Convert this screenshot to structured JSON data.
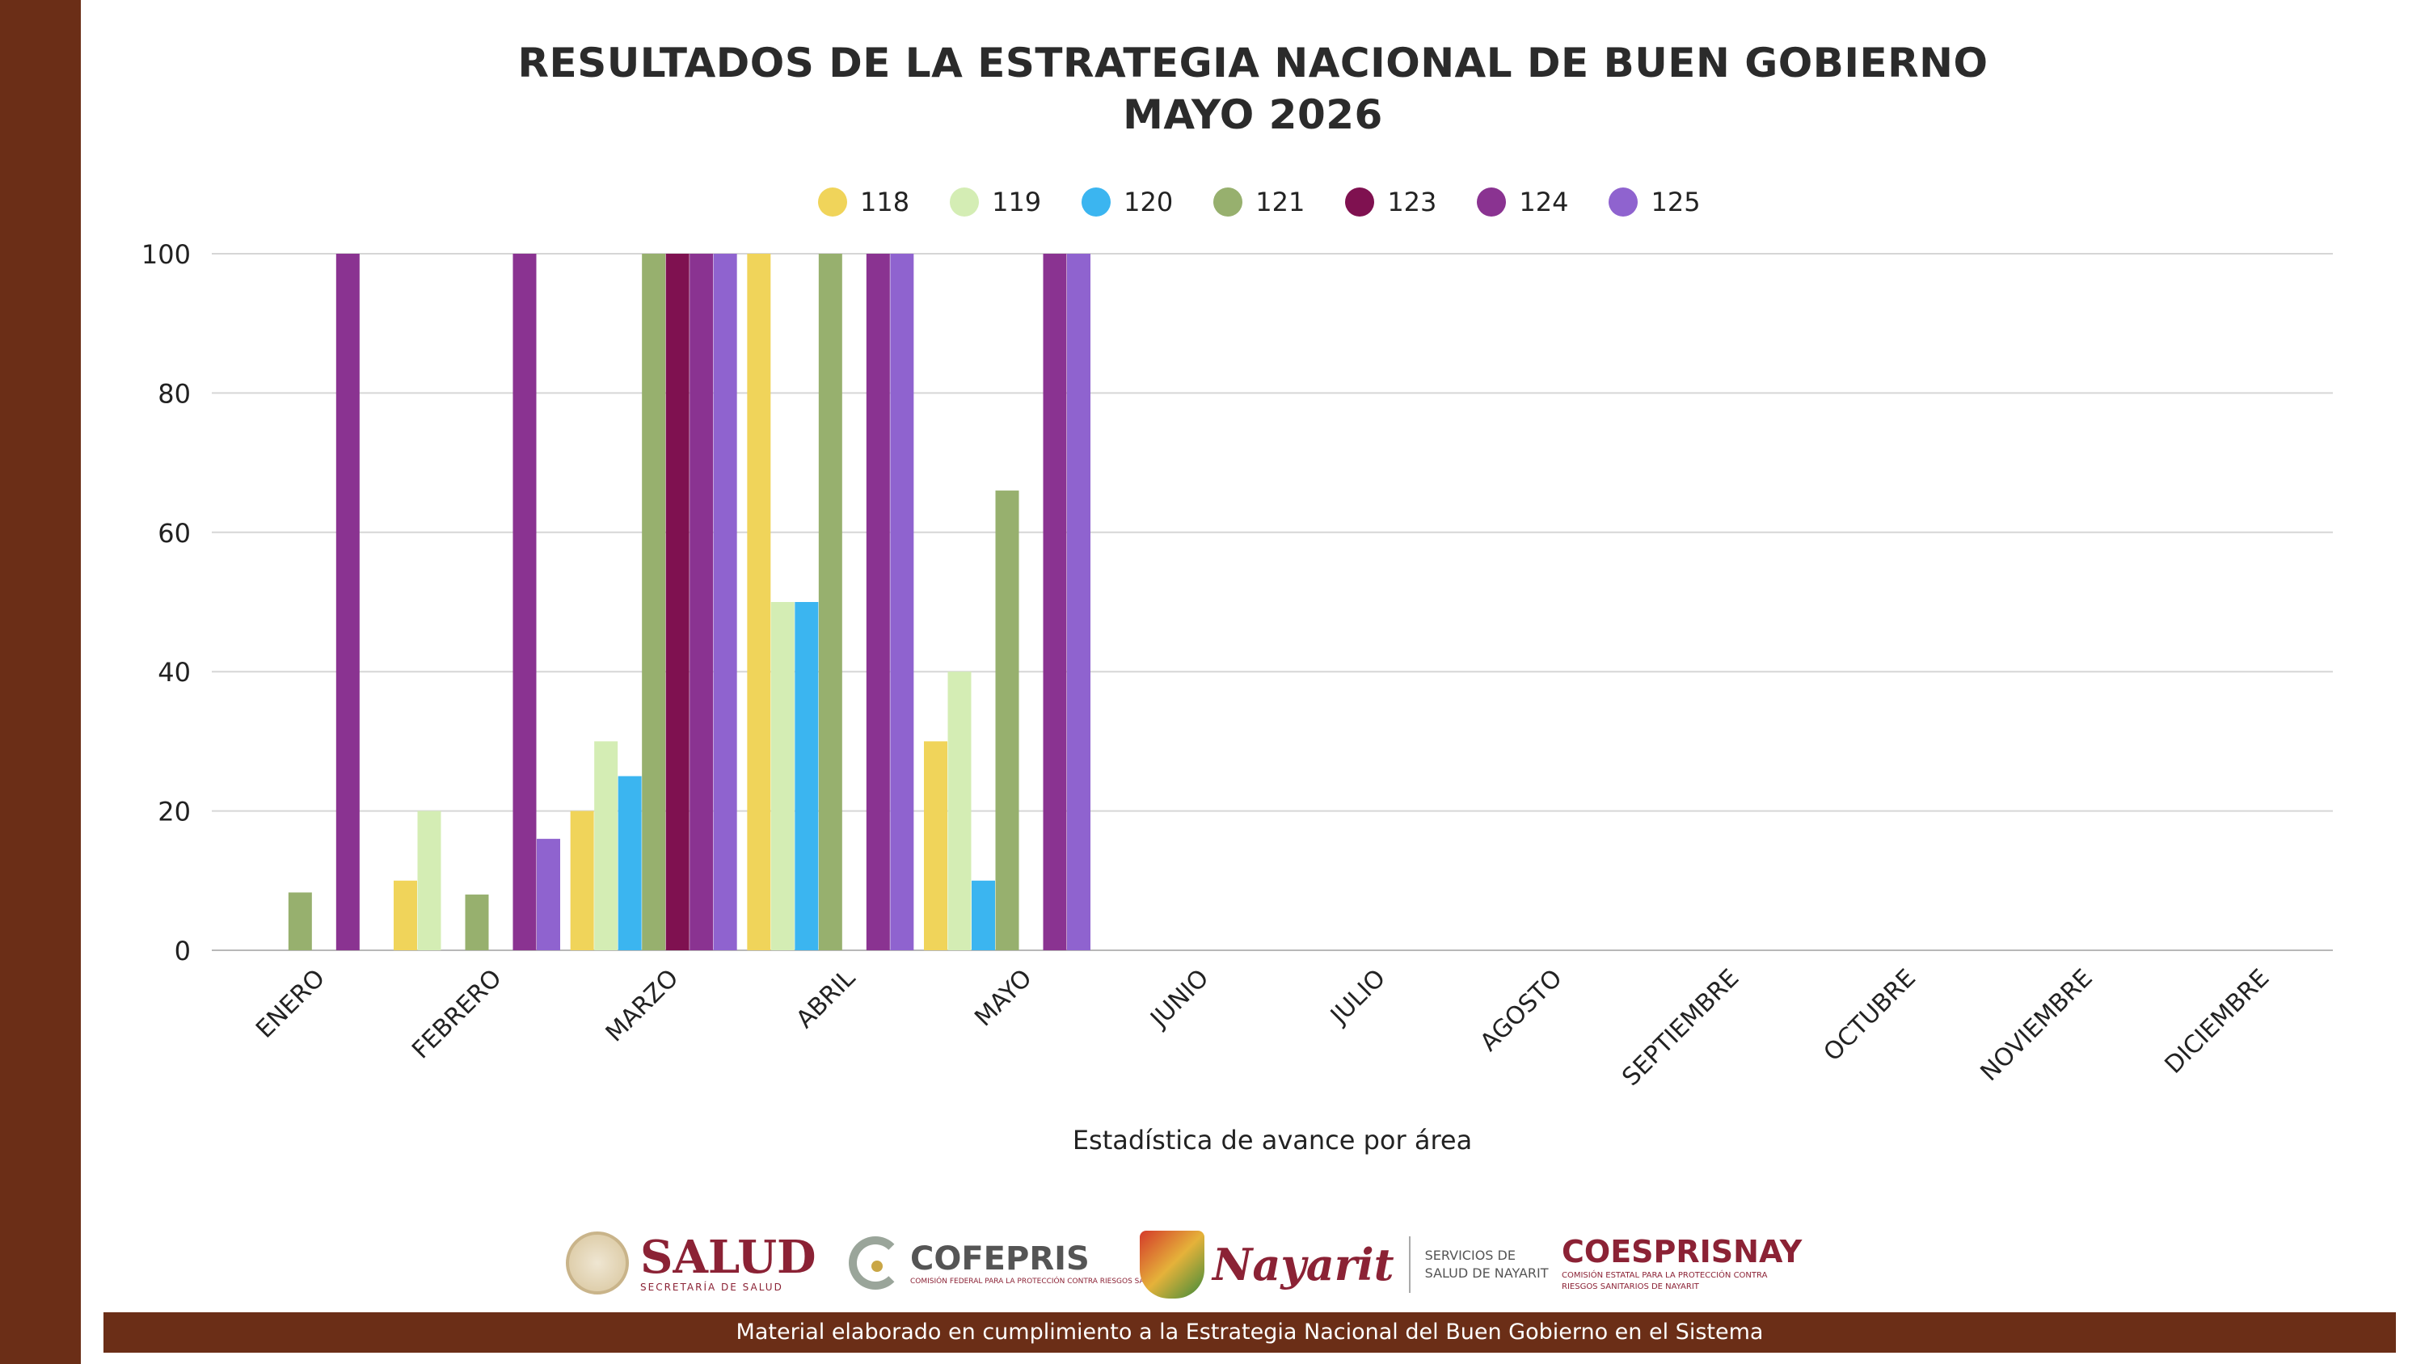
{
  "header": {
    "title_line1": "RESULTADOS DE LA ESTRATEGIA NACIONAL DE BUEN GOBIERNO",
    "title_line2": "MAYO 2026"
  },
  "chart_data": {
    "type": "bar",
    "xlabel": "Estadística de avance por área",
    "ylabel": "",
    "ylim": [
      0,
      100
    ],
    "yticks": [
      0,
      20,
      40,
      60,
      80,
      100
    ],
    "grid": true,
    "legend_position": "top-center",
    "categories": [
      "ENERO",
      "FEBRERO",
      "MARZO",
      "ABRIL",
      "MAYO",
      "JUNIO",
      "JULIO",
      "AGOSTO",
      "SEPTIEMBRE",
      "OCTUBRE",
      "NOVIEMBRE",
      "DICIEMBRE"
    ],
    "series": [
      {
        "name": "118",
        "color": "#f0d45a",
        "values": [
          null,
          10,
          20,
          100,
          30,
          null,
          null,
          null,
          null,
          null,
          null,
          null
        ]
      },
      {
        "name": "119",
        "color": "#d4edb4",
        "values": [
          null,
          20,
          30,
          50,
          40,
          null,
          null,
          null,
          null,
          null,
          null,
          null
        ]
      },
      {
        "name": "120",
        "color": "#3bb5f0",
        "values": [
          null,
          null,
          25,
          50,
          10,
          null,
          null,
          null,
          null,
          null,
          null,
          null
        ]
      },
      {
        "name": "121",
        "color": "#97b06e",
        "values": [
          8.3,
          8,
          100,
          100,
          66,
          null,
          null,
          null,
          null,
          null,
          null,
          null
        ]
      },
      {
        "name": "123",
        "color": "#7f1150",
        "values": [
          null,
          null,
          100,
          null,
          null,
          null,
          null,
          null,
          null,
          null,
          null,
          null
        ]
      },
      {
        "name": "124",
        "color": "#8a3391",
        "values": [
          100,
          100,
          100,
          100,
          100,
          null,
          null,
          null,
          null,
          null,
          null,
          null
        ]
      },
      {
        "name": "125",
        "color": "#8f63cf",
        "values": [
          null,
          16,
          100,
          100,
          100,
          null,
          null,
          null,
          null,
          null,
          null,
          null
        ]
      }
    ]
  },
  "logos": {
    "salud": {
      "main": "SALUD",
      "sub": "SECRETARÍA DE SALUD"
    },
    "cofepris": {
      "main": "COFEPRIS",
      "sub": "COMISIÓN FEDERAL PARA LA PROTECCIÓN CONTRA RIESGOS SANITARIOS"
    },
    "nayarit": {
      "script": "Nayarit",
      "svc_line1": "SERVICIOS DE",
      "svc_line2": "SALUD DE NAYARIT"
    },
    "coespris": {
      "main": "COESPRISNAY",
      "sub": "COMISIÓN ESTATAL PARA LA PROTECCIÓN CONTRA RIESGOS SANITARIOS DE NAYARIT"
    }
  },
  "footer": {
    "text": "Material elaborado en cumplimiento a la Estrategia Nacional  del Buen Gobierno en el Sistema"
  }
}
